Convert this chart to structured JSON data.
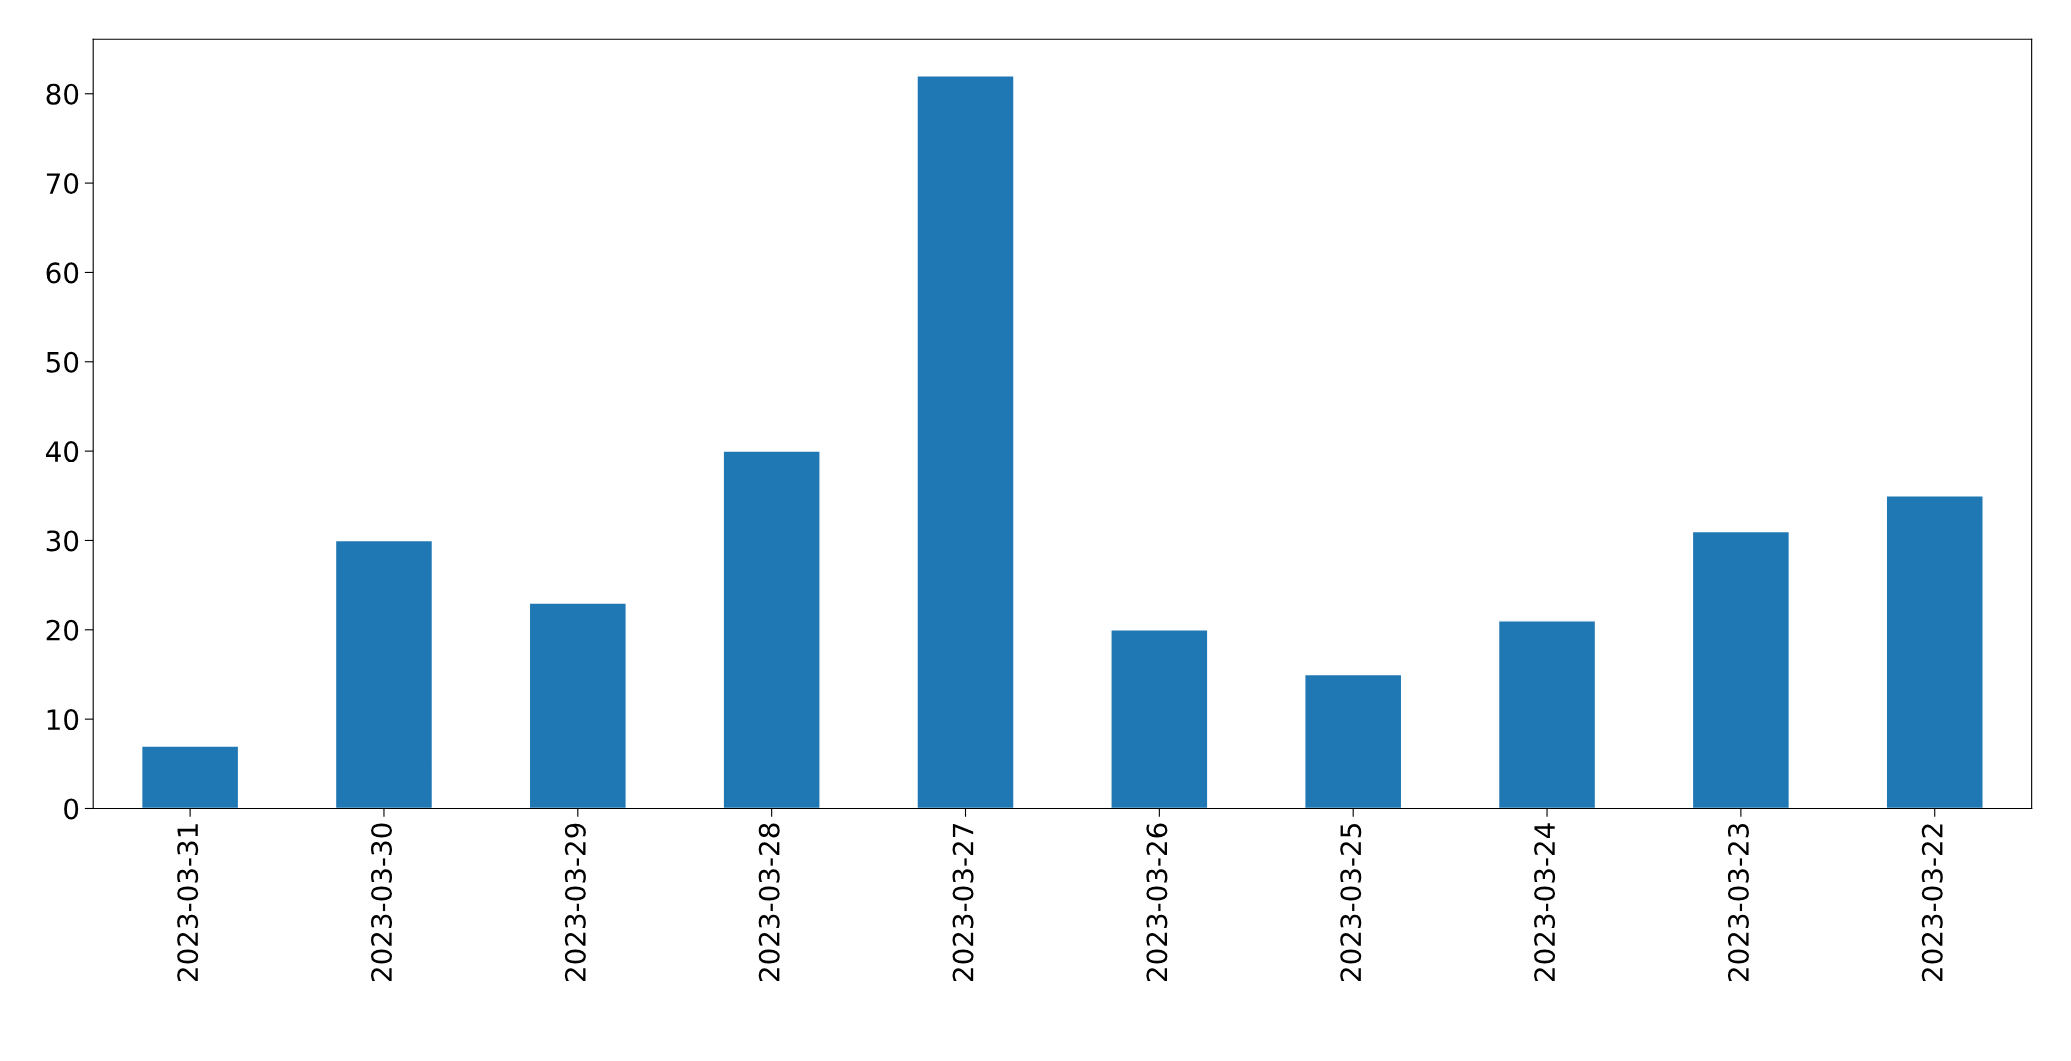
{
  "chart_data": {
    "type": "bar",
    "categories": [
      "2023-03-31",
      "2023-03-30",
      "2023-03-29",
      "2023-03-28",
      "2023-03-27",
      "2023-03-26",
      "2023-03-25",
      "2023-03-24",
      "2023-03-23",
      "2023-03-22"
    ],
    "values": [
      7,
      30,
      23,
      40,
      82,
      20,
      15,
      21,
      31,
      35
    ],
    "color": "#1f77b4",
    "ylim": [
      0,
      86.1
    ],
    "yticks": [
      0,
      10,
      20,
      30,
      40,
      50,
      60,
      70,
      80
    ],
    "grid": false,
    "legend": false
  }
}
